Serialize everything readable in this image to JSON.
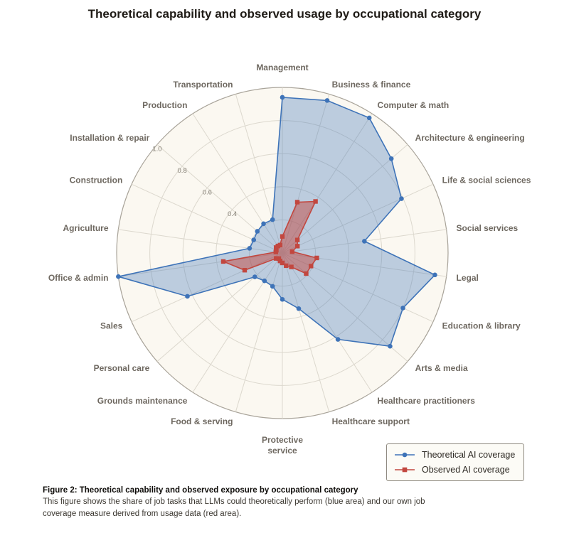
{
  "page": {
    "title": "Theoretical capability and observed usage by occupational category",
    "caption_title": "Figure 2: Theoretical capability and observed exposure by occupational category",
    "caption_body": "This figure shows the share of job tasks that LLMs could theoretically perform (blue area) and our own job coverage measure derived from usage data (red area)."
  },
  "chart_data": {
    "type": "radar",
    "title": "Theoretical capability and observed usage by occupational category",
    "categories": [
      "Management",
      "Business & finance",
      "Computer & math",
      "Architecture & engineering",
      "Life & social sciences",
      "Social services",
      "Legal",
      "Education & library",
      "Arts & media",
      "Healthcare practitioners",
      "Healthcare support",
      "Protective service",
      "Food & serving",
      "Grounds maintenance",
      "Personal care",
      "Sales",
      "Office & admin",
      "Agriculture",
      "Construction",
      "Installation & repair",
      "Production",
      "Transportation"
    ],
    "series": [
      {
        "name": "Theoretical AI coverage",
        "color": "#3e73b8",
        "fill_opacity": 0.33,
        "marker": "circle",
        "values": [
          0.94,
          0.96,
          0.97,
          0.87,
          0.79,
          0.5,
          0.93,
          0.8,
          0.86,
          0.62,
          0.35,
          0.28,
          0.21,
          0.2,
          0.22,
          0.63,
          1.0,
          0.2,
          0.19,
          0.2,
          0.21,
          0.21
        ]
      },
      {
        "name": "Observed AI coverage",
        "color": "#c2473f",
        "fill_opacity": 0.5,
        "marker": "square",
        "values": [
          0.1,
          0.32,
          0.37,
          0.12,
          0.1,
          0.06,
          0.21,
          0.19,
          0.19,
          0.1,
          0.08,
          0.06,
          0.05,
          0.04,
          0.05,
          0.25,
          0.36,
          0.04,
          0.04,
          0.05,
          0.05,
          0.05
        ]
      }
    ],
    "radial_ticks": [
      0.4,
      0.6,
      0.8,
      1.0
    ],
    "radial_tick_labels": [
      "0.4",
      "0.6",
      "0.8",
      "1.0"
    ],
    "rlim": [
      0,
      1.0
    ],
    "grid": true,
    "grid_rings": [
      0.2,
      0.4,
      0.6,
      0.8,
      1.0
    ],
    "legend_position": "bottom-right",
    "direction": "clockwise-from-top"
  }
}
